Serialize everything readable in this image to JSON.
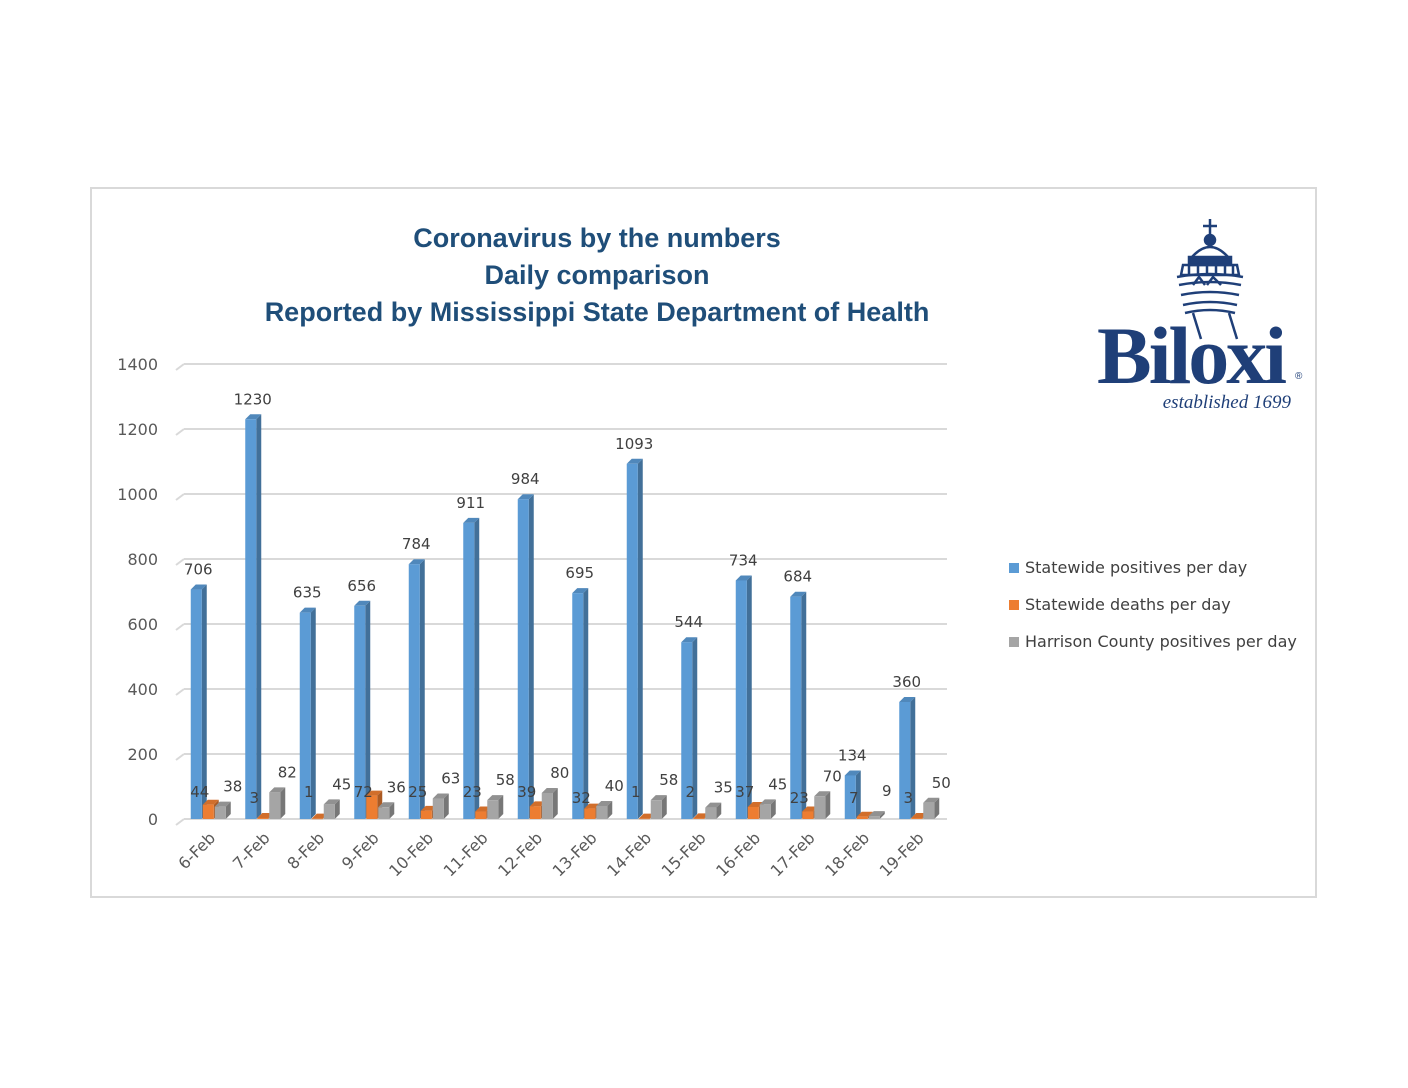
{
  "chart_data": {
    "type": "bar",
    "title": [
      "Coronavirus by the numbers",
      "Daily comparison",
      "Reported by Mississippi State Department of Health"
    ],
    "categories": [
      "6-Feb",
      "7-Feb",
      "8-Feb",
      "9-Feb",
      "10-Feb",
      "11-Feb",
      "12-Feb",
      "13-Feb",
      "14-Feb",
      "15-Feb",
      "16-Feb",
      "17-Feb",
      "18-Feb",
      "19-Feb"
    ],
    "series": [
      {
        "name": "Statewide positives per day",
        "color": "#5b9bd5",
        "values": [
          706,
          1230,
          635,
          656,
          784,
          911,
          984,
          695,
          1093,
          544,
          734,
          684,
          134,
          360
        ]
      },
      {
        "name": "Statewide deaths per day",
        "color": "#ed7d31",
        "values": [
          44,
          3,
          1,
          72,
          25,
          23,
          39,
          32,
          1,
          2,
          37,
          23,
          7,
          3
        ]
      },
      {
        "name": "Harrison County positives per day",
        "color": "#a5a5a5",
        "values": [
          38,
          82,
          45,
          36,
          63,
          58,
          80,
          40,
          58,
          35,
          45,
          70,
          9,
          50
        ]
      }
    ],
    "ylim": [
      0,
      1400
    ],
    "yticks": [
      0,
      200,
      400,
      600,
      800,
      1000,
      1200,
      1400
    ],
    "xlabel": "",
    "ylabel": "",
    "legend": "right"
  },
  "logo": {
    "word": "Biloxi",
    "tagline": "established 1699",
    "registered": "®"
  }
}
